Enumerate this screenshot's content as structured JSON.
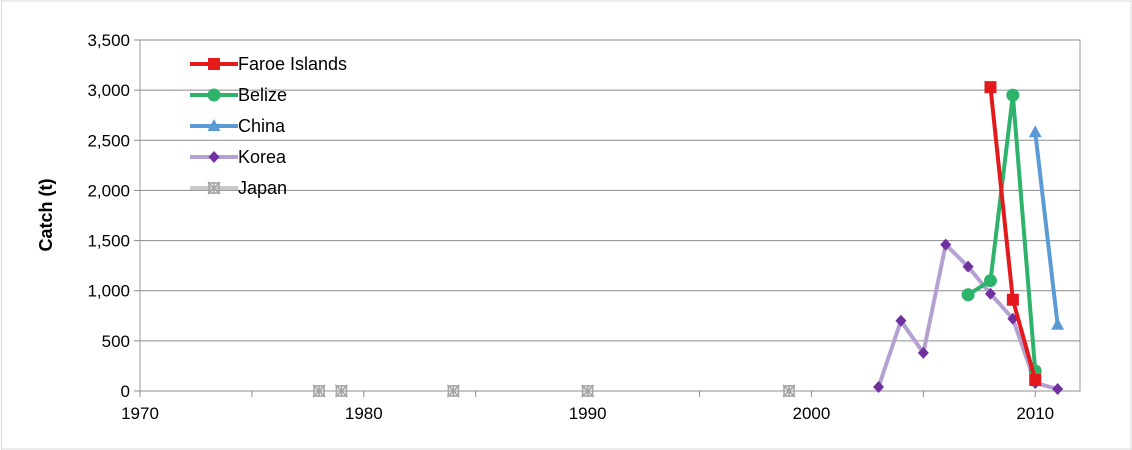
{
  "chart_data": {
    "type": "line",
    "title": "",
    "xlabel": "",
    "ylabel": "Catch (t)",
    "xlim": [
      1970,
      2012
    ],
    "ylim": [
      0,
      3500
    ],
    "x_ticks": [
      1970,
      1980,
      1990,
      2000,
      2010
    ],
    "x_tick_labels": [
      "1970",
      "1980",
      "1990",
      "2000",
      "2010"
    ],
    "y_ticks": [
      0,
      500,
      1000,
      1500,
      2000,
      2500,
      3000,
      3500
    ],
    "y_tick_labels": [
      "0",
      "500",
      "1,000",
      "1,500",
      "2,000",
      "2,500",
      "3,000",
      "3,500"
    ],
    "grid": "horizontal",
    "legend_position": "top-left",
    "series": [
      {
        "name": "Faroe Islands",
        "color": "#e3191c",
        "marker": "square",
        "line": true,
        "points": [
          [
            2008,
            3030
          ],
          [
            2009,
            910
          ],
          [
            2010,
            110
          ]
        ]
      },
      {
        "name": "Belize",
        "color": "#2db36b",
        "marker": "circle",
        "line": true,
        "points": [
          [
            2007,
            960
          ],
          [
            2008,
            1100
          ],
          [
            2009,
            2950
          ],
          [
            2010,
            200
          ]
        ]
      },
      {
        "name": "China",
        "color": "#5b9bd5",
        "marker": "triangle",
        "line": true,
        "points": [
          [
            2010,
            2580
          ],
          [
            2011,
            660
          ]
        ]
      },
      {
        "name": "Korea",
        "color": "#b4a1d2",
        "marker_color": "#7030a0",
        "marker": "diamond",
        "line": true,
        "points": [
          [
            2003,
            40
          ],
          [
            2004,
            700
          ],
          [
            2005,
            380
          ],
          [
            2006,
            1460
          ],
          [
            2007,
            1240
          ],
          [
            2008,
            970
          ],
          [
            2009,
            720
          ],
          [
            2010,
            80
          ],
          [
            2011,
            20
          ]
        ]
      },
      {
        "name": "Japan",
        "color": "#c8c8c8",
        "marker_color": "#a6a6a6",
        "marker": "star",
        "line": false,
        "points": [
          [
            1978,
            0
          ],
          [
            1979,
            0
          ],
          [
            1984,
            0
          ],
          [
            1990,
            0
          ],
          [
            1999,
            0
          ]
        ]
      }
    ]
  }
}
